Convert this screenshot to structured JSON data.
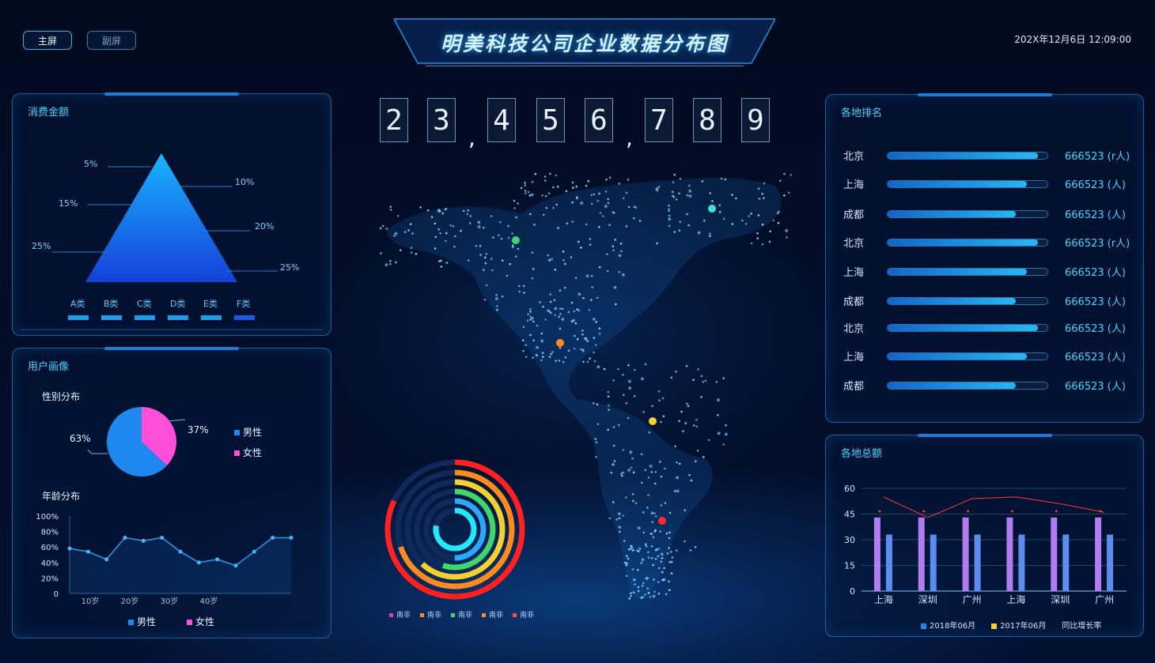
{
  "header": {
    "btn_main": "主屏",
    "btn_secondary": "副屏",
    "title": "明美科技公司企业数据分布图",
    "datetime": "202X年12月6日 12:09:00"
  },
  "counter": {
    "digits": [
      "2",
      "3",
      "4",
      "5",
      "6",
      "7",
      "8",
      "9"
    ],
    "separator": ","
  },
  "consumption": {
    "title": "消费金额",
    "pyramid_labels": [
      "5%",
      "10%",
      "15%",
      "20%",
      "25%",
      "25%"
    ],
    "categories": [
      "A类",
      "B类",
      "C类",
      "D类",
      "E类",
      "F类"
    ]
  },
  "user_profile": {
    "title": "用户画像",
    "gender_title": "性别分布",
    "gender": [
      {
        "name": "男性",
        "value": 63,
        "label": "63%",
        "color": "#1e88f0"
      },
      {
        "name": "女性",
        "value": 37,
        "label": "37%",
        "color": "#ff4fd8"
      }
    ],
    "age_title": "年龄分布",
    "age_y_ticks": [
      "100%",
      "80%",
      "60%",
      "40%",
      "20%",
      "0"
    ],
    "age_x_ticks": [
      "10岁",
      "20岁",
      "30岁",
      "40岁"
    ],
    "age_legend": [
      "男性",
      "女性"
    ]
  },
  "ranking": {
    "title": "各地排名",
    "rows": [
      {
        "city": "北京",
        "value": "666523 (r人)",
        "fill": 0.94
      },
      {
        "city": "上海",
        "value": "666523 (人)",
        "fill": 0.87
      },
      {
        "city": "成都",
        "value": "666523 (人)",
        "fill": 0.8
      },
      {
        "city": "北京",
        "value": "666523 (r人)",
        "fill": 0.94
      },
      {
        "city": "上海",
        "value": "666523 (人)",
        "fill": 0.87
      },
      {
        "city": "成都",
        "value": "666523 (人)",
        "fill": 0.8
      },
      {
        "city": "北京",
        "value": "666523 (人)",
        "fill": 0.94
      },
      {
        "city": "上海",
        "value": "666523 (人)",
        "fill": 0.87
      },
      {
        "city": "成都",
        "value": "666523 (人)",
        "fill": 0.8
      }
    ]
  },
  "totals": {
    "title": "各地总额",
    "legend": [
      "2018年06月",
      "2017年06月",
      "同比增长率"
    ]
  },
  "ring_legend": [
    "南非",
    "南非",
    "南非",
    "南非",
    "南非"
  ],
  "ring_colors": [
    "#e23bb0",
    "#ff8a1d",
    "#3fd66b",
    "#ff8a1d",
    "#ff4a4a"
  ],
  "chart_data": [
    {
      "type": "line",
      "title": "年龄分布",
      "x": [
        1,
        2,
        3,
        4,
        5,
        6,
        7,
        8,
        9,
        10,
        11,
        12,
        13
      ],
      "y": [
        58,
        54,
        44,
        72,
        68,
        72,
        54,
        40,
        44,
        36,
        54,
        72,
        72
      ],
      "ylim": [
        0,
        100
      ],
      "xlabel": "",
      "ylabel": "",
      "x_ticks": [
        "10岁",
        "20岁",
        "30岁",
        "40岁"
      ],
      "series_name": ""
    },
    {
      "type": "bar",
      "title": "各地总额",
      "categories": [
        "上海",
        "深圳",
        "广州",
        "上海",
        "深圳",
        "广州"
      ],
      "series": [
        {
          "name": "2018年06月",
          "values": [
            43,
            43,
            43,
            43,
            43,
            43
          ]
        },
        {
          "name": "2017年06月",
          "values": [
            33,
            33,
            33,
            33,
            33,
            33
          ]
        }
      ],
      "line": {
        "name": "同比增长率",
        "values": [
          55,
          43,
          54,
          55,
          51,
          46
        ]
      },
      "ylim": [
        0,
        60
      ],
      "y_ticks": [
        0,
        15,
        30,
        45,
        60
      ]
    },
    {
      "type": "pie",
      "title": "性别分布",
      "categories": [
        "男性",
        "女性"
      ],
      "values": [
        63,
        37
      ]
    }
  ]
}
